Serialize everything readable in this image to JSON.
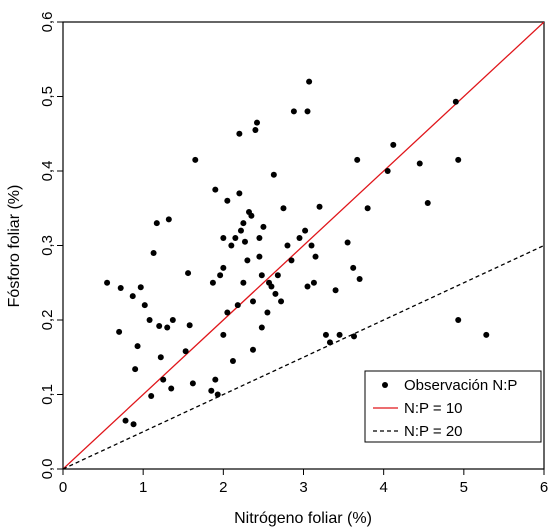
{
  "chart_data": {
    "type": "scatter",
    "xlabel": "Nitrógeno foliar (%)",
    "ylabel": "Fósforo foliar (%)",
    "xlim": [
      0,
      6
    ],
    "ylim": [
      0,
      0.6
    ],
    "xticks": [
      0,
      1,
      2,
      3,
      4,
      5,
      6
    ],
    "xtick_labels": [
      "0",
      "1",
      "2",
      "3",
      "4",
      "5",
      "6"
    ],
    "yticks": [
      0,
      0.1,
      0.2,
      0.3,
      0.4,
      0.5,
      0.6
    ],
    "ytick_labels": [
      "0,0",
      "0,1",
      "0,2",
      "0,3",
      "0,4",
      "0,5",
      "0,6"
    ],
    "grid": false,
    "legend_position": "bottom-right",
    "series": [
      {
        "name": "Observación N:P",
        "kind": "points",
        "color": "#000000",
        "x": [
          0.55,
          0.7,
          0.72,
          0.78,
          0.87,
          0.88,
          0.9,
          0.93,
          0.97,
          1.02,
          1.08,
          1.1,
          1.13,
          1.17,
          1.2,
          1.22,
          1.25,
          1.3,
          1.32,
          1.35,
          1.37,
          1.53,
          1.56,
          1.58,
          1.62,
          1.65,
          1.85,
          1.87,
          1.9,
          1.9,
          1.93,
          1.96,
          2.0,
          2.0,
          2.0,
          2.05,
          2.05,
          2.1,
          2.12,
          2.15,
          2.18,
          2.2,
          2.2,
          2.22,
          2.25,
          2.25,
          2.27,
          2.3,
          2.32,
          2.35,
          2.37,
          2.37,
          2.4,
          2.42,
          2.45,
          2.45,
          2.48,
          2.48,
          2.5,
          2.55,
          2.57,
          2.6,
          2.63,
          2.65,
          2.68,
          2.72,
          2.75,
          2.8,
          2.85,
          2.88,
          2.95,
          3.02,
          3.05,
          3.05,
          3.07,
          3.1,
          3.13,
          3.15,
          3.2,
          3.28,
          3.33,
          3.4,
          3.45,
          3.55,
          3.62,
          3.63,
          3.67,
          3.7,
          3.8,
          4.05,
          4.12,
          4.45,
          4.55,
          4.9,
          4.93,
          4.93,
          5.28
        ],
        "y": [
          0.25,
          0.184,
          0.243,
          0.065,
          0.232,
          0.06,
          0.134,
          0.165,
          0.244,
          0.22,
          0.2,
          0.098,
          0.29,
          0.33,
          0.192,
          0.15,
          0.12,
          0.19,
          0.335,
          0.108,
          0.2,
          0.158,
          0.263,
          0.193,
          0.115,
          0.415,
          0.105,
          0.25,
          0.375,
          0.12,
          0.1,
          0.26,
          0.27,
          0.18,
          0.31,
          0.36,
          0.21,
          0.3,
          0.145,
          0.31,
          0.22,
          0.37,
          0.45,
          0.32,
          0.25,
          0.33,
          0.305,
          0.28,
          0.345,
          0.34,
          0.225,
          0.16,
          0.455,
          0.465,
          0.31,
          0.285,
          0.26,
          0.19,
          0.325,
          0.21,
          0.25,
          0.245,
          0.395,
          0.235,
          0.26,
          0.225,
          0.35,
          0.3,
          0.28,
          0.48,
          0.31,
          0.32,
          0.245,
          0.48,
          0.52,
          0.3,
          0.25,
          0.285,
          0.352,
          0.18,
          0.17,
          0.24,
          0.18,
          0.304,
          0.27,
          0.178,
          0.415,
          0.255,
          0.35,
          0.4,
          0.435,
          0.41,
          0.357,
          0.493,
          0.2,
          0.415,
          0.18
        ]
      },
      {
        "name": "N:P = 10",
        "kind": "line",
        "color": "#e0161b",
        "dash": "solid",
        "x": [
          0,
          6
        ],
        "y": [
          0,
          0.6
        ]
      },
      {
        "name": "N:P = 20",
        "kind": "line",
        "color": "#000000",
        "dash": "dashed",
        "x": [
          0,
          6
        ],
        "y": [
          0,
          0.3
        ]
      }
    ]
  }
}
